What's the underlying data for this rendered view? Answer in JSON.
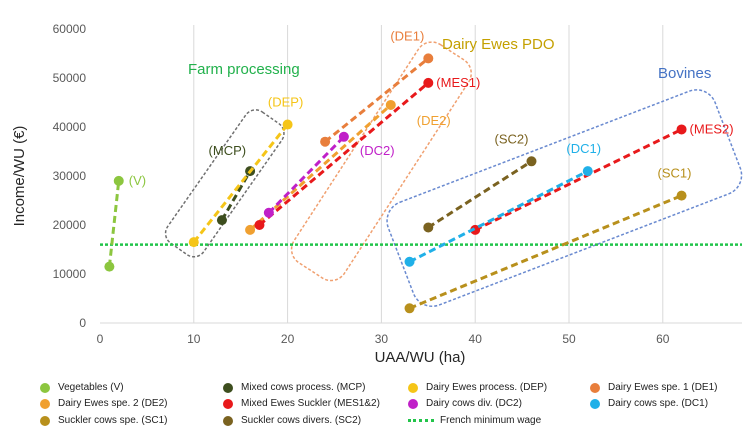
{
  "chart_data": {
    "type": "scatter",
    "xlabel": "UAA/WU (ha)",
    "ylabel": "Income/WU (€)",
    "xlim": [
      0,
      70
    ],
    "ylim": [
      0,
      60000
    ],
    "xticks": [
      "0",
      "10",
      "20",
      "30",
      "40",
      "50",
      "60"
    ],
    "yticks": [
      "0",
      "10000",
      "20000",
      "30000",
      "40000",
      "50000",
      "60000"
    ],
    "grid": "vertical",
    "legend_position": "bottom",
    "reference_line": {
      "name": "French minimum wage",
      "y": 16000,
      "color": "#22c44a"
    },
    "series": [
      {
        "name": "Vegetables (V)",
        "label": "(V)",
        "color": "#8cc63f",
        "x": [
          1,
          2
        ],
        "y": [
          11500,
          29000
        ]
      },
      {
        "name": "Mixed cows process. (MCP)",
        "label": "(MCP)",
        "color": "#3d4e1e",
        "x": [
          13,
          16
        ],
        "y": [
          21000,
          31000
        ]
      },
      {
        "name": "Dairy Ewes process. (DEP)",
        "label": "(DEP)",
        "color": "#f5c518",
        "x": [
          10,
          20
        ],
        "y": [
          16500,
          40500
        ]
      },
      {
        "name": "Dairy Ewes spe. 1 (DE1)",
        "label": "(DE1)",
        "color": "#e87e3c",
        "x": [
          24,
          35
        ],
        "y": [
          37000,
          54000
        ]
      },
      {
        "name": "Dairy Ewes spe. 2 (DE2)",
        "label": "(DE2)",
        "color": "#f0a030",
        "x": [
          16,
          31
        ],
        "y": [
          19000,
          44500
        ]
      },
      {
        "name": "Mixed Ewes Suckler (MES1&2)",
        "label": "(MES1)",
        "color": "#e8191b",
        "x": [
          17,
          35
        ],
        "y": [
          20000,
          49000
        ]
      },
      {
        "name": "Mixed Ewes Suckler MES2",
        "label": "(MES2)",
        "color": "#e8191b",
        "x": [
          40,
          62
        ],
        "y": [
          19000,
          39500
        ]
      },
      {
        "name": "Dairy cows div. (DC2)",
        "label": "(DC2)",
        "color": "#c020c8",
        "x": [
          18,
          26
        ],
        "y": [
          22500,
          38000
        ]
      },
      {
        "name": "Dairy cows spe. (DC1)",
        "label": "(DC1)",
        "color": "#20b0e8",
        "x": [
          33,
          52
        ],
        "y": [
          12500,
          31000
        ]
      },
      {
        "name": "Suckler cows spe. (SC1)",
        "label": "(SC1)",
        "color": "#b8901c",
        "x": [
          33,
          62
        ],
        "y": [
          3000,
          26000
        ]
      },
      {
        "name": "Suckler cows divers. (SC2)",
        "label": "(SC2)",
        "color": "#7a6220",
        "x": [
          35,
          46
        ],
        "y": [
          19500,
          33000
        ]
      }
    ],
    "group_labels": [
      {
        "text": "Farm processing",
        "color": "#22b14c"
      },
      {
        "text": "Dairy Ewes PDO",
        "color": "#c4a000"
      },
      {
        "text": "Bovines",
        "color": "#4472c4"
      }
    ]
  },
  "legend": {
    "items": [
      {
        "label": "Vegetables (V)",
        "color": "#8cc63f"
      },
      {
        "label": "Mixed cows process. (MCP)",
        "color": "#3d4e1e"
      },
      {
        "label": "Dairy Ewes process. (DEP)",
        "color": "#f5c518"
      },
      {
        "label": "Dairy Ewes spe. 1 (DE1)",
        "color": "#e87e3c"
      },
      {
        "label": "Dairy Ewes spe. 2 (DE2)",
        "color": "#f0a030"
      },
      {
        "label": "Mixed Ewes Suckler (MES1&2)",
        "color": "#e8191b"
      },
      {
        "label": "Dairy cows div. (DC2)",
        "color": "#c020c8"
      },
      {
        "label": "Dairy cows spe. (DC1)",
        "color": "#20b0e8"
      },
      {
        "label": "Suckler cows spe. (SC1)",
        "color": "#b8901c"
      },
      {
        "label": "Suckler cows divers. (SC2)",
        "color": "#7a6220"
      },
      {
        "label": "French minimum wage",
        "color": "#22c44a"
      }
    ]
  }
}
